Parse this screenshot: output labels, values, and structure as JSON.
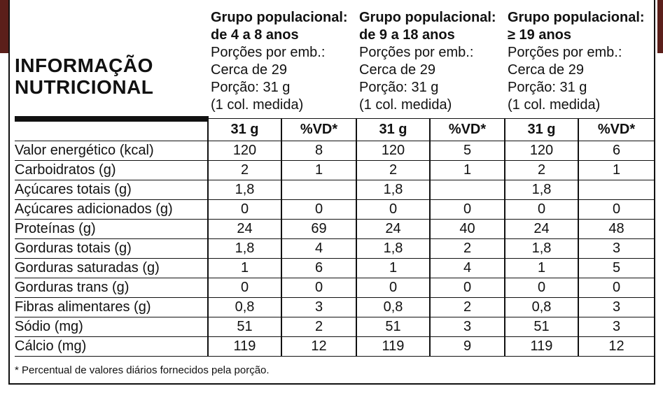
{
  "title_lines": [
    "INFORMAÇÃO",
    "NUTRICIONAL"
  ],
  "groups": [
    {
      "header_lines": [
        "Grupo populacional:",
        "de 4 a 8 anos"
      ],
      "info_lines": [
        "Porções por emb.:",
        "Cerca de 29",
        "Porção: 31 g",
        "(1 col. medida)"
      ]
    },
    {
      "header_lines": [
        "Grupo populacional:",
        "de 9 a 18 anos"
      ],
      "info_lines": [
        "Porções por emb.:",
        "Cerca de 29",
        "Porção: 31 g",
        "(1 col. medida)"
      ]
    },
    {
      "header_lines": [
        "Grupo populacional:",
        "≥ 19 anos"
      ],
      "info_lines": [
        "Porções por emb.:",
        "Cerca de 29",
        "Porção: 31 g",
        "(1 col. medida)"
      ]
    }
  ],
  "column_headers": [
    "31 g",
    "%VD*",
    "31 g",
    "%VD*",
    "31 g",
    "%VD*"
  ],
  "rows": [
    {
      "label": "Valor energético (kcal)",
      "values": [
        "120",
        "8",
        "120",
        "5",
        "120",
        "6"
      ]
    },
    {
      "label": "Carboidratos (g)",
      "values": [
        "2",
        "1",
        "2",
        "1",
        "2",
        "1"
      ]
    },
    {
      "label": "Açúcares totais (g)",
      "values": [
        "1,8",
        "",
        "1,8",
        "",
        "1,8",
        ""
      ]
    },
    {
      "label": "Açúcares adicionados (g)",
      "values": [
        "0",
        "0",
        "0",
        "0",
        "0",
        "0"
      ]
    },
    {
      "label": "Proteínas (g)",
      "values": [
        "24",
        "69",
        "24",
        "40",
        "24",
        "48"
      ]
    },
    {
      "label": "Gorduras totais (g)",
      "values": [
        "1,8",
        "4",
        "1,8",
        "2",
        "1,8",
        "3"
      ]
    },
    {
      "label": "Gorduras saturadas (g)",
      "values": [
        "1",
        "6",
        "1",
        "4",
        "1",
        "5"
      ]
    },
    {
      "label": "Gorduras trans (g)",
      "values": [
        "0",
        "0",
        "0",
        "0",
        "0",
        "0"
      ]
    },
    {
      "label": "Fibras alimentares (g)",
      "values": [
        "0,8",
        "3",
        "0,8",
        "2",
        "0,8",
        "3"
      ]
    },
    {
      "label": "Sódio (mg)",
      "values": [
        "51",
        "2",
        "51",
        "3",
        "51",
        "3"
      ]
    },
    {
      "label": "Cálcio (mg)",
      "values": [
        "119",
        "12",
        "119",
        "9",
        "119",
        "12"
      ]
    }
  ],
  "footnote": "* Percentual de valores diários fornecidos pela porção.",
  "colors": {
    "frame": "#111111",
    "corner_accent": "#5b1f1a",
    "background": "#ffffff"
  }
}
